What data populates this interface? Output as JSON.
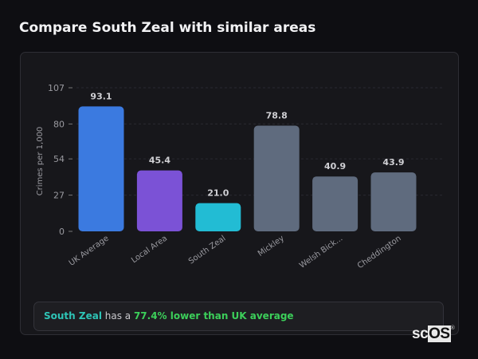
{
  "title": "Compare South Zeal with similar areas",
  "chart_data": {
    "type": "bar",
    "ylabel": "Crimes per 1,000",
    "ylim": [
      0,
      107
    ],
    "yticks": [
      0,
      27,
      54,
      80,
      107
    ],
    "grid": true,
    "categories": [
      "UK Average",
      "Local Area",
      "South Zeal",
      "Mickley",
      "Welsh Bick...",
      "Cheddington"
    ],
    "values": [
      93.1,
      45.4,
      21.0,
      78.8,
      40.9,
      43.9
    ],
    "value_labels": [
      "93.1",
      "45.4",
      "21.0",
      "78.8",
      "40.9",
      "43.9"
    ],
    "colors": [
      "#3b7ae0",
      "#7b52d6",
      "#22bcd4",
      "#5f6b7e",
      "#5f6b7e",
      "#5f6b7e"
    ]
  },
  "callout": {
    "area": "South Zeal",
    "middle": " has a ",
    "comparison": "77.4% lower than UK average",
    "area_color": "#2ec4b6",
    "comparison_color": "#3ccf5a"
  },
  "logo": {
    "text": "scOS"
  }
}
